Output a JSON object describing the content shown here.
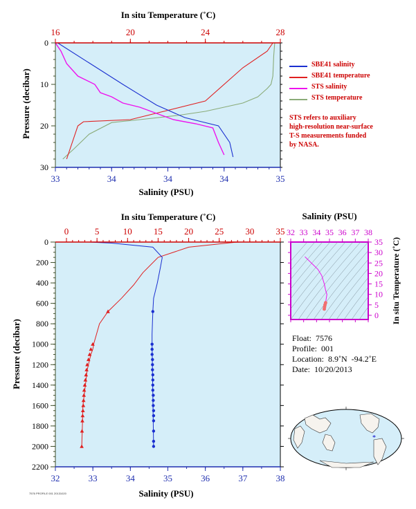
{
  "colors": {
    "panel_bg": "#d5eef9",
    "temp_axis": "#cc0000",
    "sal_axis": "#1f2faf",
    "pressure_axis": "#3e4f2b",
    "inset_axis": "#cc00cc",
    "sbe_salinity": "#1a2fd0",
    "sbe_temperature": "#e02020",
    "sts_salinity": "#ee11ee",
    "sts_temperature": "#8aab78"
  },
  "top_chart": {
    "top_axis_label": "In situ Temperature (˚C)",
    "top_ticks": [
      "16",
      "20",
      "24",
      "28"
    ],
    "bottom_axis_label": "Salinity (PSU)",
    "bottom_ticks": [
      "33",
      "34",
      "34",
      "34",
      "35"
    ],
    "y_axis_label": "Pressure (decibar)",
    "y_ticks": [
      "0",
      "10",
      "20",
      "30"
    ]
  },
  "legend": [
    {
      "label": "SBE41 salinity",
      "color": "#1a2fd0"
    },
    {
      "label": "SBE41 temperature",
      "color": "#e02020"
    },
    {
      "label": "STS salinity",
      "color": "#ee11ee"
    },
    {
      "label": "STS temperature",
      "color": "#8aab78"
    }
  ],
  "note_lines": [
    "STS refers to auxiliary",
    "high-resolution near-surface",
    "T-S measurements funded",
    "by NASA."
  ],
  "main_chart": {
    "top_axis_label": "In situ Temperature (˚C)",
    "top_ticks": [
      "0",
      "5",
      "10",
      "15",
      "20",
      "25",
      "30",
      "35"
    ],
    "bottom_axis_label": "Salinity (PSU)",
    "bottom_ticks": [
      "32",
      "33",
      "34",
      "35",
      "36",
      "37",
      "38"
    ],
    "y_axis_label": "Pressure (decibar)",
    "y_ticks": [
      "0",
      "200",
      "400",
      "600",
      "800",
      "1000",
      "1200",
      "1400",
      "1600",
      "1800",
      "2000",
      "2200"
    ]
  },
  "inset": {
    "top_axis_label": "Salinity (PSU)",
    "top_ticks": [
      "32",
      "33",
      "34",
      "35",
      "36",
      "37",
      "38"
    ],
    "right_axis_label": "In situ Temperature (˚C)",
    "right_ticks": [
      "0",
      "5",
      "10",
      "15",
      "20",
      "25",
      "30",
      "35"
    ]
  },
  "float_info": [
    {
      "key": "Float:",
      "value": "7576"
    },
    {
      "key": "Profile:",
      "value": "001"
    },
    {
      "key": "Location:",
      "value": "8.9˚N  -94.2˚E"
    },
    {
      "key": "Date:",
      "value": "10/20/2013"
    }
  ],
  "credit": "7576 PROFILE 001 20131020",
  "chart_data": [
    {
      "type": "line",
      "title": "",
      "xlabel": "Salinity (PSU)",
      "x2label": "In situ Temperature (˚C)",
      "ylabel": "Pressure (decibar)",
      "salinity_range": [
        33,
        35
      ],
      "temperature_range": [
        16,
        28
      ],
      "ylim": [
        30,
        0
      ],
      "grid": false,
      "series": [
        {
          "name": "SBE41 salinity",
          "axis": "salinity",
          "x": [
            33.02,
            33.6,
            33.9,
            34.15,
            34.3,
            34.45,
            34.55,
            34.58
          ],
          "y": [
            0,
            10,
            15,
            18,
            19,
            20,
            24,
            27.5
          ]
        },
        {
          "name": "SBE41 temperature",
          "axis": "temperature",
          "x": [
            27.6,
            27.3,
            26.0,
            24.0,
            20.0,
            17.5,
            17.2,
            16.6
          ],
          "y": [
            0,
            2,
            6,
            14,
            18.5,
            19,
            20,
            28
          ]
        },
        {
          "name": "STS salinity",
          "axis": "salinity",
          "x": [
            33.0,
            33.05,
            33.1,
            33.2,
            33.35,
            33.4,
            33.5,
            33.6,
            33.75,
            33.9,
            34.05,
            34.25,
            34.4,
            34.45,
            34.5
          ],
          "y": [
            0,
            2,
            5,
            8,
            10,
            12,
            13,
            14.5,
            15.5,
            17,
            18.5,
            19.5,
            20.5,
            24,
            27
          ]
        },
        {
          "name": "STS temperature",
          "axis": "temperature",
          "x": [
            27.7,
            27.65,
            27.6,
            27.5,
            27.3,
            26.8,
            26.0,
            25.0,
            24.0,
            22.5,
            20.5,
            19.0,
            17.8,
            17.0,
            16.4
          ],
          "y": [
            0,
            3,
            8,
            10,
            11,
            13,
            14.5,
            15.5,
            16.5,
            17.5,
            18.5,
            19.2,
            22,
            25.5,
            28
          ]
        }
      ]
    },
    {
      "type": "line",
      "title": "",
      "xlabel": "Salinity (PSU)",
      "x2label": "In situ Temperature (˚C)",
      "ylabel": "Pressure (decibar)",
      "salinity_range": [
        32,
        38
      ],
      "temperature_range": [
        0,
        35
      ],
      "ylim": [
        2200,
        0
      ],
      "grid": false,
      "series": [
        {
          "name": "SBE41 temperature",
          "axis": "temperature",
          "x": [
            28.5,
            27.5,
            20.0,
            15.0,
            12.5,
            11.0,
            9.0,
            6.8,
            5.4,
            4.5,
            4.3,
            4.0,
            3.8,
            3.6,
            3.4,
            3.3,
            3.2,
            3.1,
            3.0,
            2.9,
            2.8,
            2.7,
            2.6,
            2.5
          ],
          "y": [
            0,
            3,
            50,
            150,
            300,
            420,
            550,
            680,
            800,
            990,
            1050,
            1100,
            1150,
            1200,
            1250,
            1300,
            1350,
            1400,
            1450,
            1500,
            1550,
            1600,
            1800,
            2000
          ]
        },
        {
          "name": "SBE41 temperature markers",
          "axis": "temperature",
          "x": [
            6.8,
            4.3,
            4.0,
            3.8,
            3.6,
            3.4,
            3.3,
            3.2,
            3.1,
            3.0,
            2.9,
            2.85,
            2.8,
            2.75,
            2.7,
            2.65,
            2.6,
            2.55,
            2.5
          ],
          "y": [
            680,
            1000,
            1050,
            1100,
            1150,
            1200,
            1250,
            1300,
            1350,
            1400,
            1450,
            1500,
            1550,
            1600,
            1650,
            1700,
            1750,
            1850,
            2000
          ]
        },
        {
          "name": "SBE41 salinity",
          "axis": "salinity",
          "x": [
            32.9,
            33.5,
            34.6,
            34.85,
            34.8,
            34.72,
            34.62,
            34.6,
            34.58,
            34.58,
            34.6,
            34.62
          ],
          "y": [
            0,
            10,
            50,
            150,
            250,
            400,
            550,
            680,
            900,
            1000,
            1500,
            2000
          ]
        },
        {
          "name": "SBE41 salinity markers",
          "axis": "salinity",
          "x": [
            34.6,
            34.58,
            34.58,
            34.58,
            34.59,
            34.59,
            34.59,
            34.6,
            34.6,
            34.6,
            34.6,
            34.61,
            34.61,
            34.61,
            34.62,
            34.62,
            34.62,
            34.62,
            34.62,
            34.62
          ],
          "y": [
            680,
            1000,
            1050,
            1100,
            1150,
            1200,
            1250,
            1300,
            1350,
            1400,
            1450,
            1500,
            1550,
            1600,
            1650,
            1700,
            1750,
            1850,
            1950,
            2000
          ]
        }
      ]
    },
    {
      "type": "scatter",
      "title": "",
      "xlabel": "Salinity (PSU)",
      "ylabel": "In situ Temperature (˚C)",
      "xlim": [
        32,
        38
      ],
      "ylim": [
        -2,
        35
      ],
      "series": [
        {
          "name": "T-S profile",
          "x": [
            33.1,
            33.6,
            34.1,
            34.4,
            34.6,
            34.7,
            34.8,
            34.75,
            34.7,
            34.65,
            34.62,
            34.6
          ],
          "y": [
            28,
            25,
            22,
            19,
            15,
            12,
            10,
            8,
            6,
            5,
            4,
            3
          ]
        }
      ]
    }
  ]
}
